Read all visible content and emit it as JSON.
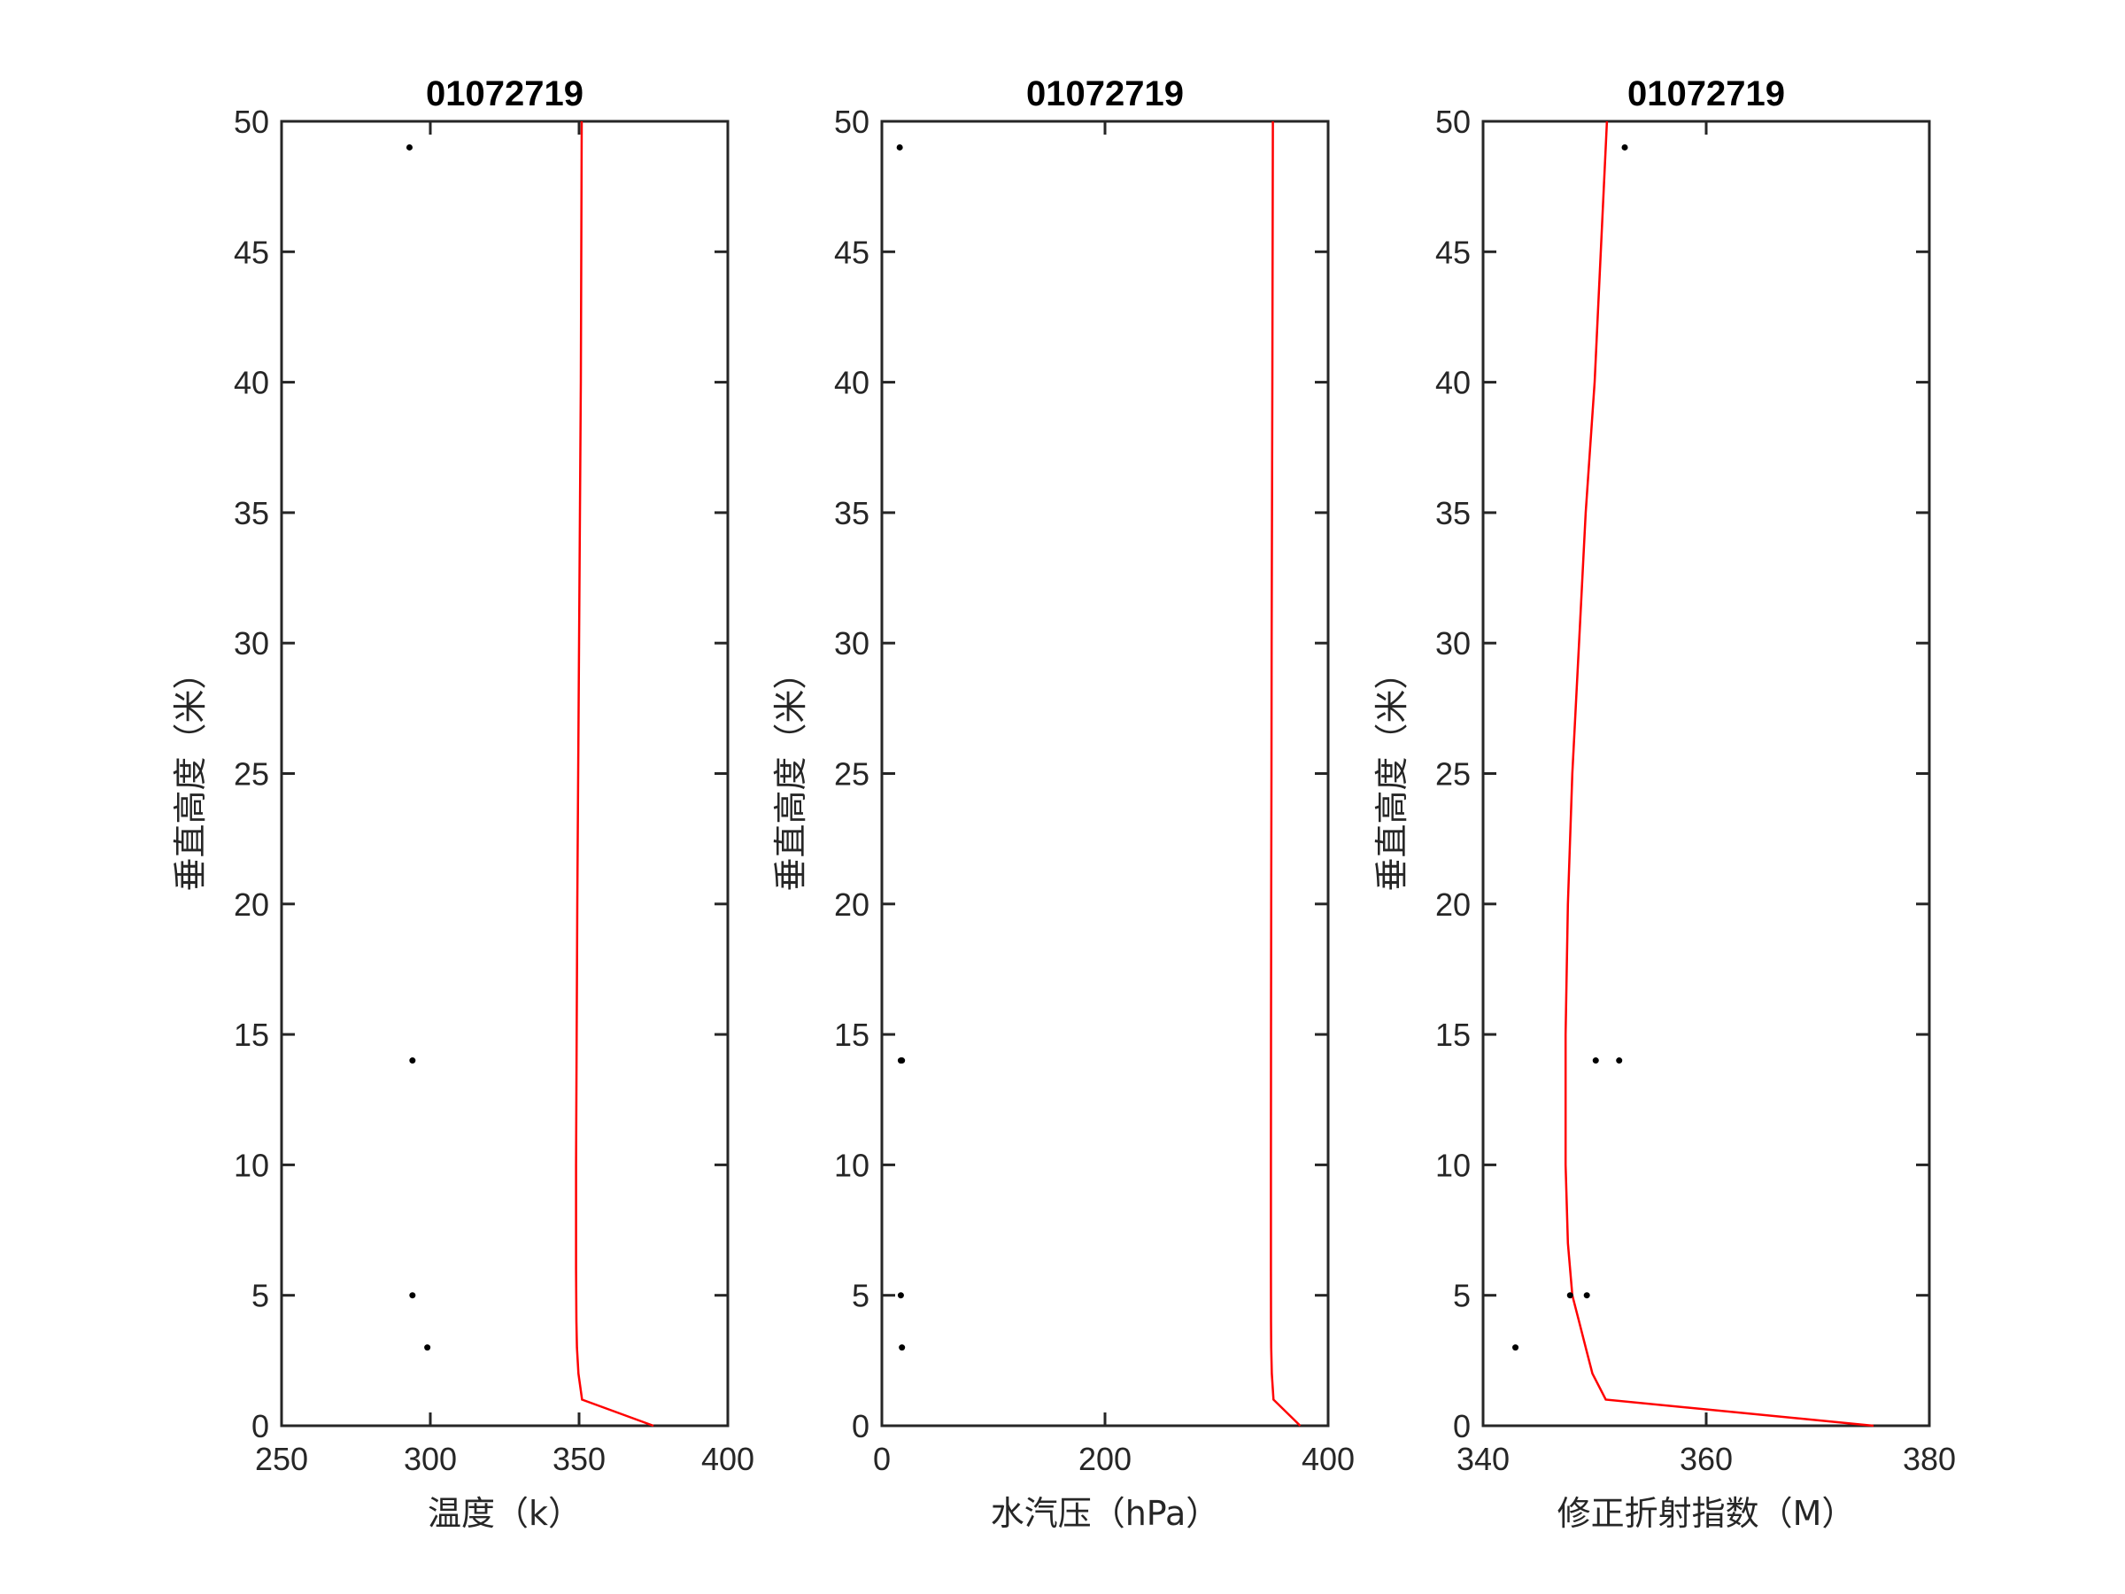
{
  "chart_data": [
    {
      "type": "line",
      "title": "01072719",
      "xlabel": "温度（k）",
      "ylabel": "垂直高度（米）",
      "xlim": [
        250,
        400
      ],
      "ylim": [
        0,
        50
      ],
      "xticks": [
        250,
        300,
        350,
        400
      ],
      "yticks": [
        0,
        5,
        10,
        15,
        20,
        25,
        30,
        35,
        40,
        45,
        50
      ],
      "grid": false,
      "series": [
        {
          "style": "line",
          "color": "#ff0000",
          "x": [
            375.0,
            351.0,
            349.8,
            349.3,
            349.1,
            349.0,
            349.0,
            349.2,
            349.4,
            349.7,
            350.0,
            350.3,
            350.6,
            350.9
          ],
          "y": [
            0,
            1,
            2,
            3,
            4,
            6,
            10,
            15,
            20,
            25,
            30,
            35,
            40,
            50
          ]
        },
        {
          "style": "markers",
          "color": "#000000",
          "x": [
            293,
            294,
            294,
            299
          ],
          "y": [
            49,
            14,
            5,
            3
          ]
        }
      ]
    },
    {
      "type": "line",
      "title": "01072719",
      "xlabel": "水汽压（hPa）",
      "ylabel": "垂直高度（米）",
      "xlim": [
        0,
        400
      ],
      "ylim": [
        0,
        50
      ],
      "xticks": [
        0,
        200,
        400
      ],
      "yticks": [
        0,
        5,
        10,
        15,
        20,
        25,
        30,
        35,
        40,
        45,
        50
      ],
      "grid": false,
      "series": [
        {
          "style": "line",
          "color": "#ff0000",
          "x": [
            375.0,
            351.0,
            349.5,
            349.0,
            348.8,
            348.7,
            348.7,
            348.8,
            349.0,
            349.2,
            349.4,
            349.7,
            350.0,
            350.5
          ],
          "y": [
            0,
            1,
            2,
            3,
            4,
            6,
            10,
            15,
            20,
            25,
            30,
            35,
            40,
            50
          ]
        },
        {
          "style": "markers",
          "color": "#000000",
          "x": [
            16,
            17,
            18,
            17,
            18
          ],
          "y": [
            49,
            14,
            14,
            5,
            3
          ]
        }
      ]
    },
    {
      "type": "line",
      "title": "01072719",
      "xlabel": "修正折射指数（M）",
      "ylabel": "垂直高度（米）",
      "xlim": [
        340,
        380
      ],
      "ylim": [
        0,
        50
      ],
      "xticks": [
        340,
        360,
        380
      ],
      "yticks": [
        0,
        5,
        10,
        15,
        20,
        25,
        30,
        35,
        40,
        45,
        50
      ],
      "grid": false,
      "series": [
        {
          "style": "line",
          "color": "#ff0000",
          "x": [
            375.0,
            351.0,
            349.8,
            349.2,
            348.6,
            348.0,
            347.6,
            347.4,
            347.4,
            347.6,
            348.0,
            348.6,
            349.2,
            350.0,
            351.1
          ],
          "y": [
            0,
            1,
            2,
            3,
            4,
            5,
            7,
            10,
            15,
            20,
            25,
            30,
            35,
            40,
            50
          ]
        },
        {
          "style": "markers",
          "color": "#000000",
          "x": [
            352.7,
            350.1,
            352.2,
            347.8,
            349.3,
            342.9
          ],
          "y": [
            49,
            14,
            14,
            5,
            5,
            3
          ]
        }
      ]
    }
  ]
}
